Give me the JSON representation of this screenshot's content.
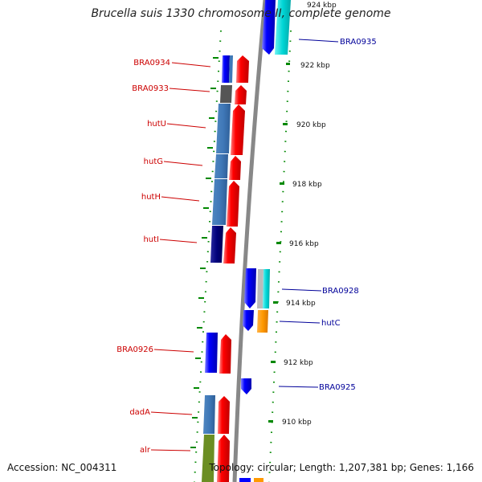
{
  "title": "Brucella suis 1330 chromosome II, complete genome",
  "accession": "Accession: NC_004311",
  "topology": "Topology: circular; Length: 1,207,381 bp; Genes: 1,166",
  "colors": {
    "left_label": "#cc0000",
    "right_label": "#000099",
    "tick": "#008800",
    "backbone": "#888888",
    "forward_cds": "#ff0000",
    "reverse_cds": "#0000ff"
  },
  "ticks": [
    {
      "label": "924 kbp"
    },
    {
      "label": "922 kbp"
    },
    {
      "label": "920 kbp"
    },
    {
      "label": "918 kbp"
    },
    {
      "label": "916 kbp"
    },
    {
      "label": "914 kbp"
    },
    {
      "label": "912 kbp"
    },
    {
      "label": "910 kbp"
    }
  ],
  "left_genes": [
    {
      "label": "BRA0934"
    },
    {
      "label": "BRA0933"
    },
    {
      "label": "hutU"
    },
    {
      "label": "hutG"
    },
    {
      "label": "hutH"
    },
    {
      "label": "hutI"
    },
    {
      "label": "BRA0926"
    },
    {
      "label": "dadA"
    },
    {
      "label": "alr"
    }
  ],
  "right_genes": [
    {
      "label": "BRA0935"
    },
    {
      "label": "BRA0928"
    },
    {
      "label": "hutC"
    },
    {
      "label": "BRA0925"
    }
  ]
}
